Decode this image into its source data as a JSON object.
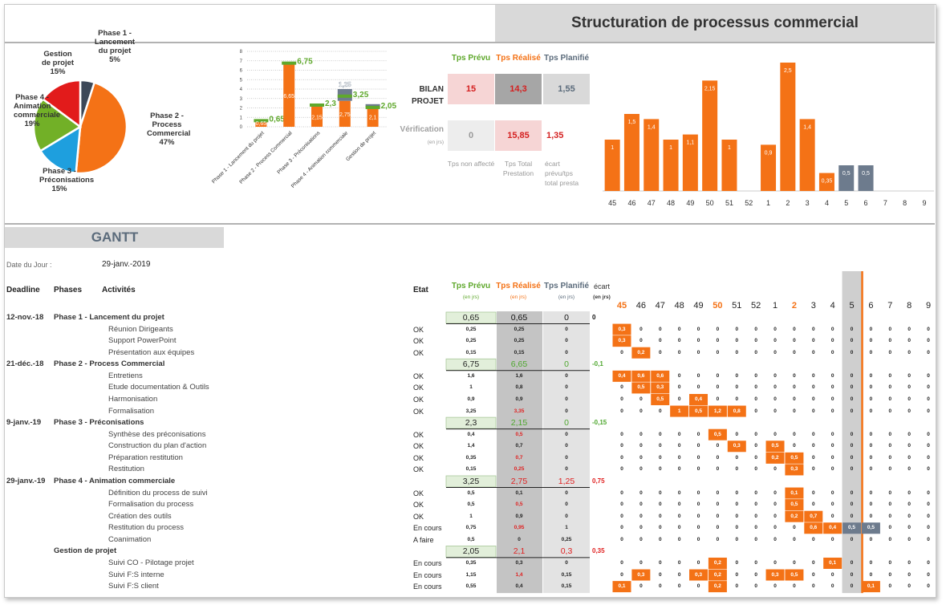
{
  "header": {
    "title": "Structuration de processus commercial"
  },
  "chart_data": [
    {
      "type": "pie",
      "categories": [
        "Phase 1 - Lancement du projet",
        "Phase 2 - Process Commercial",
        "Phase 3 - Préconisations",
        "Phase 4 - Animation commerciale",
        "Gestion de projet"
      ],
      "values": [
        5,
        47,
        15,
        19,
        15
      ],
      "value_labels": [
        "5%",
        "47%",
        "15%",
        "19%",
        "15%"
      ],
      "colors": [
        "#3c4858",
        "#f47216",
        "#1e9fde",
        "#72b027",
        "#e21b1b"
      ]
    },
    {
      "type": "bar",
      "categories": [
        "Phase 1 - Lancement du projet",
        "Phase 2 - Process Commercial",
        "Phase 3 - Préconisations",
        "Phase 4 - Animation commerciale",
        "Gestion de projet"
      ],
      "ylim": [
        0,
        8
      ],
      "yticks": [
        0,
        1,
        2,
        3,
        4,
        5,
        6,
        7,
        8
      ],
      "grid": true,
      "series": [
        {
          "color": "#f47216",
          "values": [
            0.65,
            6.65,
            2.15,
            2.75,
            2.1
          ],
          "value_labels": [
            "0,65",
            "6,65",
            "2,15",
            "2,75",
            "2,1"
          ]
        },
        {
          "color": "#6d7b8d",
          "values": [
            0,
            0,
            0,
            1.25,
            0.3
          ],
          "value_labels": [
            null,
            null,
            null,
            "1,25",
            null
          ]
        },
        {
          "color": "#5fa82c",
          "values": [
            0.65,
            6.75,
            2.3,
            3.25,
            2.05
          ],
          "value_labels": [
            "0,65",
            "6,75",
            "2,3",
            "3,25",
            "2,05"
          ]
        }
      ]
    },
    {
      "type": "bar",
      "categories": [
        "45",
        "46",
        "47",
        "48",
        "49",
        "50",
        "51",
        "52",
        "1",
        "2",
        "3",
        "4",
        "5",
        "6",
        "7",
        "8",
        "9"
      ],
      "series": [
        {
          "color": "#f47216",
          "values": [
            1,
            1.5,
            1.4,
            1,
            1.1,
            2.15,
            1,
            null,
            0.9,
            2.5,
            1.4,
            0.35,
            null,
            null,
            null,
            null,
            null
          ],
          "value_labels": [
            "1",
            "1,5",
            "1,4",
            "1",
            "1,1",
            "2,15",
            "1",
            null,
            "0,9",
            "2,5",
            "1,4",
            "0,35",
            null,
            null,
            null,
            null,
            null
          ]
        },
        {
          "color": "#6d7b8d",
          "values": [
            null,
            null,
            null,
            null,
            null,
            null,
            null,
            null,
            null,
            null,
            null,
            null,
            0.5,
            0.5,
            null,
            null,
            null
          ],
          "value_labels": [
            null,
            null,
            null,
            null,
            null,
            null,
            null,
            null,
            null,
            null,
            null,
            null,
            "0,5",
            "0,5",
            null,
            null,
            null
          ]
        }
      ]
    }
  ],
  "bilan": {
    "headers": [
      "Tps Prévu",
      "Tps Réalisé",
      "Tps Planifié"
    ],
    "rows": [
      {
        "label": "BILAN PROJET",
        "values": [
          "15",
          "14,3",
          "1,55"
        ]
      },
      {
        "label": "Vérification",
        "unit": "(en jrs)",
        "values": [
          "0",
          "15,85",
          "1,35"
        ]
      }
    ],
    "notes": [
      "Tps non affecté",
      "Tps Total Prestation",
      "écart prévu/tps total presta"
    ]
  },
  "gantt": {
    "title": "GANTT",
    "date_label": "Date du Jour :",
    "date": "29-janv.-2019",
    "headers": {
      "deadline": "Deadline",
      "phases": "Phases",
      "activities": "Activités",
      "etat": "Etat",
      "prevu": "Tps Prévu",
      "realise": "Tps Réalisé",
      "planifie": "Tps Planifié",
      "ecart": "écart",
      "unit": "(en jrs)"
    },
    "weeks": [
      {
        "text": "45",
        "accent": true
      },
      "46",
      "47",
      "48",
      "49",
      {
        "text": "50",
        "accent": true
      },
      "51",
      "52",
      "1",
      {
        "text": "2",
        "accent": true
      },
      "3",
      "4",
      "5",
      "6",
      "7",
      "8",
      "9"
    ],
    "rows": [
      {
        "deadline": "12-nov.-18",
        "phase": "Phase 1 - Lancement du projet",
        "prevu": "0,65",
        "realise": "0,65",
        "planifie": "0",
        "ecart": "0",
        "color": "#111111"
      },
      {
        "activity": "Réunion Dirigeants",
        "etat": "OK",
        "prevu": "0,25",
        "realise": "0,25",
        "planifie": "0",
        "weeks": [
          {
            "text": "0,3",
            "color": "#f47216"
          },
          "0",
          "0",
          "0",
          "0",
          "0",
          "0",
          "0",
          "0",
          "0",
          "0",
          "0",
          "0",
          "0",
          "0",
          "0",
          "0"
        ]
      },
      {
        "activity": "Support PowerPoint",
        "etat": "OK",
        "prevu": "0,25",
        "realise": "0,25",
        "planifie": "0",
        "weeks": [
          {
            "text": "0,3",
            "color": "#f47216"
          },
          "0",
          "0",
          "0",
          "0",
          "0",
          "0",
          "0",
          "0",
          "0",
          "0",
          "0",
          "0",
          "0",
          "0",
          "0",
          "0"
        ]
      },
      {
        "activity": "Présentation aux équipes",
        "etat": "OK",
        "prevu": "0,15",
        "realise": "0,15",
        "planifie": "0",
        "weeks": [
          "0",
          {
            "text": "0,2",
            "color": "#f47216"
          },
          "0",
          "0",
          "0",
          "0",
          "0",
          "0",
          "0",
          "0",
          "0",
          "0",
          "0",
          "0",
          "0",
          "0",
          "0"
        ]
      },
      {
        "deadline": "21-déc.-18",
        "phase": "Phase 2 - Process Commercial",
        "prevu": "6,75",
        "realise": "6,65",
        "planifie": "0",
        "ecart": "-0,1",
        "color": "#4ea72e"
      },
      {
        "activity": "Entretiens",
        "etat": "OK",
        "prevu": "1,6",
        "realise": "1,6",
        "planifie": "0",
        "weeks": [
          {
            "text": "0,4",
            "color": "#f47216"
          },
          {
            "text": "0,6",
            "color": "#f47216"
          },
          {
            "text": "0,6",
            "color": "#f47216"
          },
          "0",
          "0",
          "0",
          "0",
          "0",
          "0",
          "0",
          "0",
          "0",
          "0",
          "0",
          "0",
          "0",
          "0"
        ]
      },
      {
        "activity": "Etude documentation & Outils",
        "etat": "OK",
        "prevu": "1",
        "realise": "0,8",
        "planifie": "0",
        "weeks": [
          "0",
          {
            "text": "0,5",
            "color": "#f47216"
          },
          {
            "text": "0,3",
            "color": "#f47216"
          },
          "0",
          "0",
          "0",
          "0",
          "0",
          "0",
          "0",
          "0",
          "0",
          "0",
          "0",
          "0",
          "0",
          "0"
        ]
      },
      {
        "activity": "Harmonisation",
        "etat": "OK",
        "prevu": "0,9",
        "realise": "0,9",
        "planifie": "0",
        "weeks": [
          "0",
          "0",
          {
            "text": "0,5",
            "color": "#f47216"
          },
          "0",
          {
            "text": "0,4",
            "color": "#f47216"
          },
          "0",
          "0",
          "0",
          "0",
          "0",
          "0",
          "0",
          "0",
          "0",
          "0",
          "0",
          "0"
        ]
      },
      {
        "activity": "Formalisation",
        "etat": "OK",
        "prevu": "3,25",
        "realise": "3,35",
        "planifie": "0",
        "realise_color": "#e02020",
        "weeks": [
          "0",
          "0",
          "0",
          {
            "text": "1",
            "color": "#f47216"
          },
          {
            "text": "0,5",
            "color": "#f47216"
          },
          {
            "text": "1,2",
            "color": "#f47216"
          },
          {
            "text": "0,8",
            "color": "#f47216"
          },
          "0",
          "0",
          "0",
          "0",
          "0",
          "0",
          "0",
          "0",
          "0",
          "0"
        ]
      },
      {
        "deadline": "9-janv.-19",
        "phase": "Phase 3 - Préconisations",
        "prevu": "2,3",
        "realise": "2,15",
        "planifie": "0",
        "ecart": "-0,15",
        "color": "#4ea72e"
      },
      {
        "activity": "Synthèse des préconisations",
        "etat": "OK",
        "prevu": "0,4",
        "realise": "0,5",
        "planifie": "0",
        "realise_color": "#e02020",
        "weeks": [
          "0",
          "0",
          "0",
          "0",
          "0",
          {
            "text": "0,5",
            "color": "#f47216"
          },
          "0",
          "0",
          "0",
          "0",
          "0",
          "0",
          "0",
          "0",
          "0",
          "0",
          "0"
        ]
      },
      {
        "activity": "Construction du plan d'action",
        "etat": "OK",
        "prevu": "1,4",
        "realise": "0,7",
        "planifie": "0",
        "weeks": [
          "0",
          "0",
          "0",
          "0",
          "0",
          "0",
          {
            "text": "0,3",
            "color": "#f47216"
          },
          "0",
          {
            "text": "0,5",
            "color": "#f47216"
          },
          "0",
          "0",
          "0",
          "0",
          "0",
          "0",
          "0",
          "0"
        ]
      },
      {
        "activity": "Préparation restitution",
        "etat": "OK",
        "prevu": "0,35",
        "realise": "0,7",
        "planifie": "0",
        "realise_color": "#e02020",
        "weeks": [
          "0",
          "0",
          "0",
          "0",
          "0",
          "0",
          "0",
          "0",
          {
            "text": "0,2",
            "color": "#f47216"
          },
          {
            "text": "0,5",
            "color": "#f47216"
          },
          "0",
          "0",
          "0",
          "0",
          "0",
          "0",
          "0"
        ]
      },
      {
        "activity": "Restitution",
        "etat": "OK",
        "prevu": "0,15",
        "realise": "0,25",
        "planifie": "0",
        "realise_color": "#e02020",
        "weeks": [
          "0",
          "0",
          "0",
          "0",
          "0",
          "0",
          "0",
          "0",
          "0",
          {
            "text": "0,3",
            "color": "#f47216"
          },
          "0",
          "0",
          "0",
          "0",
          "0",
          "0",
          "0"
        ]
      },
      {
        "deadline": "29-janv.-19",
        "phase": "Phase 4 - Animation commerciale",
        "prevu": "3,25",
        "realise": "2,75",
        "planifie": "1,25",
        "ecart": "0,75",
        "color": "#e02020"
      },
      {
        "activity": "Définition du process de suivi",
        "etat": "OK",
        "prevu": "0,5",
        "realise": "0,1",
        "planifie": "0",
        "weeks": [
          "0",
          "0",
          "0",
          "0",
          "0",
          "0",
          "0",
          "0",
          "0",
          {
            "text": "0,1",
            "color": "#f47216"
          },
          "0",
          "0",
          "0",
          "0",
          "0",
          "0",
          "0"
        ]
      },
      {
        "activity": "Formalisation du process",
        "etat": "OK",
        "prevu": "0,5",
        "realise": "0,5",
        "planifie": "0",
        "realise_color": "#e02020",
        "weeks": [
          "0",
          "0",
          "0",
          "0",
          "0",
          "0",
          "0",
          "0",
          "0",
          {
            "text": "0,5",
            "color": "#f47216"
          },
          "0",
          "0",
          "0",
          "0",
          "0",
          "0",
          "0"
        ]
      },
      {
        "activity": "Création des outils",
        "etat": "OK",
        "prevu": "1",
        "realise": "0,9",
        "planifie": "0",
        "weeks": [
          "0",
          "0",
          "0",
          "0",
          "0",
          "0",
          "0",
          "0",
          "0",
          {
            "text": "0,2",
            "color": "#f47216"
          },
          {
            "text": "0,7",
            "color": "#f47216"
          },
          "0",
          "0",
          "0",
          "0",
          "0",
          "0"
        ]
      },
      {
        "activity": "Restitution du process",
        "etat": "En cours",
        "prevu": "0,75",
        "realise": "0,95",
        "planifie": "1",
        "realise_color": "#e02020",
        "weeks": [
          "0",
          "0",
          "0",
          "0",
          "0",
          "0",
          "0",
          "0",
          "0",
          "0",
          {
            "text": "0,6",
            "color": "#f47216"
          },
          {
            "text": "0,4",
            "color": "#f47216"
          },
          {
            "text": "0,5",
            "color": "#6d7b8d"
          },
          {
            "text": "0,5",
            "color": "#6d7b8d"
          },
          "0",
          "0",
          "0"
        ]
      },
      {
        "activity": "Coanimation",
        "etat": "A faire",
        "prevu": "0,5",
        "realise": "0",
        "planifie": "0,25",
        "weeks": [
          "0",
          "0",
          "0",
          "0",
          "0",
          "0",
          "0",
          "0",
          "0",
          "0",
          "0",
          "0",
          "0",
          "0",
          "0",
          "0",
          "0"
        ]
      },
      {
        "phase": "Gestion de projet",
        "prevu": "2,05",
        "realise": "2,1",
        "planifie": "0,3",
        "ecart": "0,35",
        "color": "#e02020"
      },
      {
        "activity": "Suivi CO - Pilotage projet",
        "etat": "En cours",
        "prevu": "0,35",
        "realise": "0,3",
        "planifie": "0",
        "weeks": [
          "0",
          "0",
          "0",
          "0",
          "0",
          {
            "text": "0,2",
            "color": "#f47216"
          },
          "0",
          "0",
          "0",
          "0",
          "0",
          {
            "text": "0,1",
            "color": "#f47216"
          },
          "0",
          "0",
          "0",
          "0",
          "0"
        ]
      },
      {
        "activity": "Suivi F:S interne",
        "etat": "En cours",
        "prevu": "1,15",
        "realise": "1,4",
        "planifie": "0,15",
        "realise_color": "#e02020",
        "weeks": [
          "0",
          {
            "text": "0,3",
            "color": "#f47216"
          },
          "0",
          "0",
          {
            "text": "0,3",
            "color": "#f47216"
          },
          {
            "text": "0,2",
            "color": "#f47216"
          },
          "0",
          "0",
          {
            "text": "0,3",
            "color": "#f47216"
          },
          {
            "text": "0,5",
            "color": "#f47216"
          },
          "0",
          "0",
          "0",
          "0",
          "0",
          "0",
          "0"
        ]
      },
      {
        "activity": "Suivi F:S client",
        "etat": "En cours",
        "prevu": "0,55",
        "realise": "0,4",
        "planifie": "0,15",
        "weeks": [
          {
            "text": "0,1",
            "color": "#f47216"
          },
          "0",
          "0",
          "0",
          "0",
          {
            "text": "0,2",
            "color": "#f47216"
          },
          "0",
          "0",
          "0",
          "0",
          "0",
          "0",
          "0",
          {
            "text": "0,1",
            "color": "#f47216"
          },
          "0",
          "0",
          "0"
        ]
      }
    ]
  }
}
